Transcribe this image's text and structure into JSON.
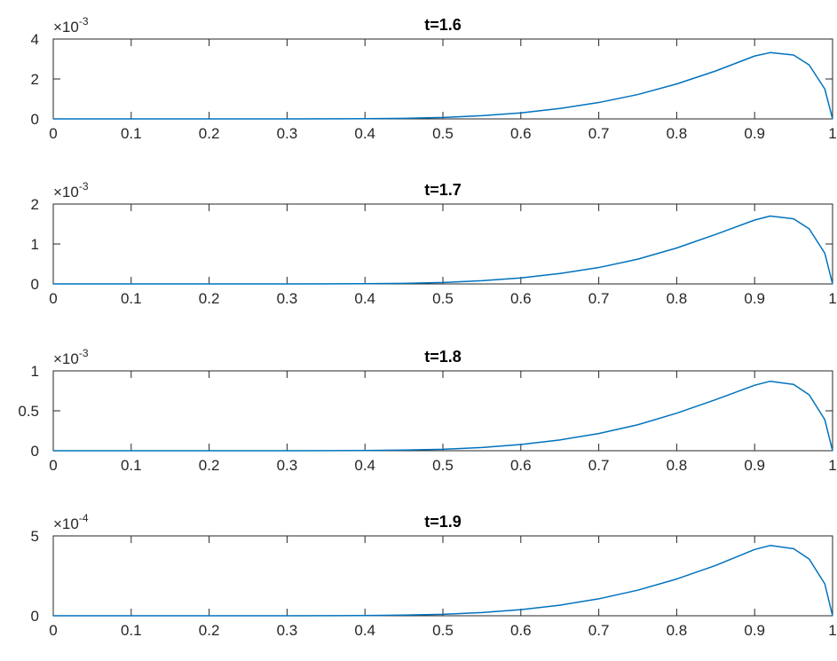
{
  "chart_data": [
    {
      "type": "line",
      "title": "t=1.6",
      "xlim": [
        0,
        1
      ],
      "ylim": [
        0,
        4
      ],
      "x_ticks": [
        "0",
        "0.1",
        "0.2",
        "0.3",
        "0.4",
        "0.5",
        "0.6",
        "0.7",
        "0.8",
        "0.9",
        "1"
      ],
      "y_ticks": [
        "0",
        "2",
        "4"
      ],
      "y_exponent": {
        "base": "×10",
        "power": "-3"
      },
      "color": "#0072BD",
      "grid": false,
      "series": [
        {
          "x": [
            0,
            0.1,
            0.2,
            0.3,
            0.4,
            0.45,
            0.5,
            0.55,
            0.6,
            0.65,
            0.7,
            0.75,
            0.8,
            0.85,
            0.9,
            0.92,
            0.95,
            0.97,
            0.99,
            1.0
          ],
          "y": [
            0,
            0,
            0,
            0,
            0.01,
            0.03,
            0.07,
            0.16,
            0.3,
            0.52,
            0.82,
            1.22,
            1.75,
            2.4,
            3.15,
            3.32,
            3.2,
            2.7,
            1.5,
            0
          ]
        }
      ]
    },
    {
      "type": "line",
      "title": "t=1.7",
      "xlim": [
        0,
        1
      ],
      "ylim": [
        0,
        2
      ],
      "x_ticks": [
        "0",
        "0.1",
        "0.2",
        "0.3",
        "0.4",
        "0.5",
        "0.6",
        "0.7",
        "0.8",
        "0.9",
        "1"
      ],
      "y_ticks": [
        "0",
        "1",
        "2"
      ],
      "y_exponent": {
        "base": "×10",
        "power": "-3"
      },
      "color": "#0072BD",
      "grid": false,
      "series": [
        {
          "x": [
            0,
            0.1,
            0.2,
            0.3,
            0.4,
            0.45,
            0.5,
            0.55,
            0.6,
            0.65,
            0.7,
            0.75,
            0.8,
            0.85,
            0.9,
            0.92,
            0.95,
            0.97,
            0.99,
            1.0
          ],
          "y": [
            0,
            0,
            0,
            0,
            0.005,
            0.015,
            0.035,
            0.08,
            0.15,
            0.26,
            0.41,
            0.62,
            0.9,
            1.24,
            1.6,
            1.7,
            1.63,
            1.38,
            0.77,
            0
          ]
        }
      ]
    },
    {
      "type": "line",
      "title": "t=1.8",
      "xlim": [
        0,
        1
      ],
      "ylim": [
        0,
        1
      ],
      "x_ticks": [
        "0",
        "0.1",
        "0.2",
        "0.3",
        "0.4",
        "0.5",
        "0.6",
        "0.7",
        "0.8",
        "0.9",
        "1"
      ],
      "y_ticks": [
        "0",
        "0.5",
        "1"
      ],
      "y_exponent": {
        "base": "×10",
        "power": "-3"
      },
      "color": "#0072BD",
      "grid": false,
      "series": [
        {
          "x": [
            0,
            0.1,
            0.2,
            0.3,
            0.4,
            0.45,
            0.5,
            0.55,
            0.6,
            0.65,
            0.7,
            0.75,
            0.8,
            0.85,
            0.9,
            0.92,
            0.95,
            0.97,
            0.99,
            1.0
          ],
          "y": [
            0,
            0,
            0,
            0,
            0.003,
            0.008,
            0.018,
            0.04,
            0.078,
            0.135,
            0.215,
            0.325,
            0.47,
            0.64,
            0.82,
            0.87,
            0.83,
            0.7,
            0.39,
            0
          ]
        }
      ]
    },
    {
      "type": "line",
      "title": "t=1.9",
      "xlim": [
        0,
        1
      ],
      "ylim": [
        0,
        5
      ],
      "x_ticks": [
        "0",
        "0.1",
        "0.2",
        "0.3",
        "0.4",
        "0.5",
        "0.6",
        "0.7",
        "0.8",
        "0.9",
        "1"
      ],
      "y_ticks": [
        "0",
        "5"
      ],
      "y_exponent": {
        "base": "×10",
        "power": "-4"
      },
      "color": "#0072BD",
      "grid": false,
      "series": [
        {
          "x": [
            0,
            0.1,
            0.2,
            0.3,
            0.4,
            0.45,
            0.5,
            0.55,
            0.6,
            0.65,
            0.7,
            0.75,
            0.8,
            0.85,
            0.9,
            0.92,
            0.95,
            0.97,
            0.99,
            1.0
          ],
          "y": [
            0,
            0,
            0,
            0,
            0.015,
            0.04,
            0.09,
            0.2,
            0.38,
            0.66,
            1.06,
            1.6,
            2.3,
            3.15,
            4.15,
            4.4,
            4.2,
            3.55,
            2.0,
            0
          ]
        }
      ]
    }
  ]
}
